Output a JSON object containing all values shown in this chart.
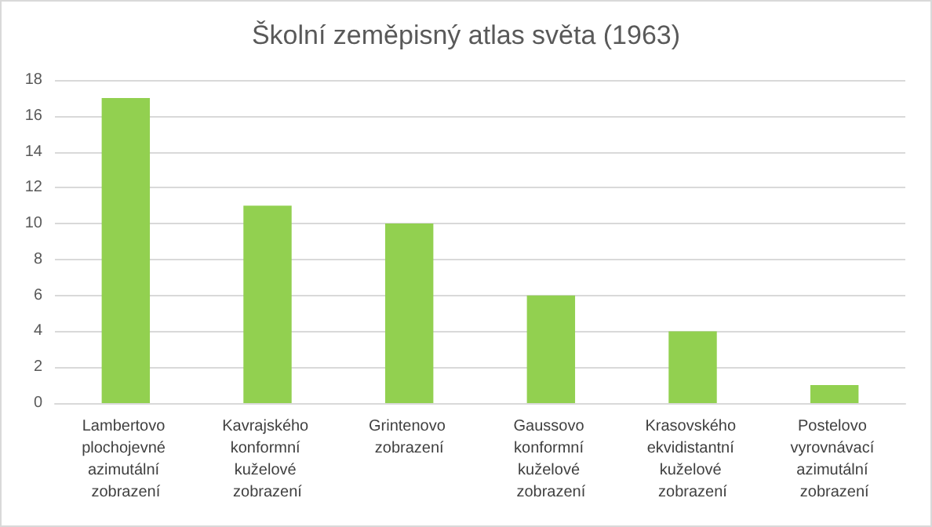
{
  "chart_data": {
    "type": "bar",
    "title": "Školní zeměpisný atlas světa (1963)",
    "categories": [
      "Lambertovo plochojevné azimutální zobrazení",
      "Kavrajského konformní kuželové zobrazení",
      "Grintenovo zobrazení",
      "Gaussovo konformní kuželové zobrazení",
      "Krasovského ekvidistantní kuželové zobrazení",
      "Postelovo vyrovnávací azimutální zobrazení"
    ],
    "values": [
      17,
      11,
      10,
      6,
      4,
      1
    ],
    "color": "#92d050",
    "ylim": [
      0,
      18
    ],
    "yticks": [
      0,
      2,
      4,
      6,
      8,
      10,
      12,
      14,
      16,
      18
    ],
    "grid": "y"
  }
}
